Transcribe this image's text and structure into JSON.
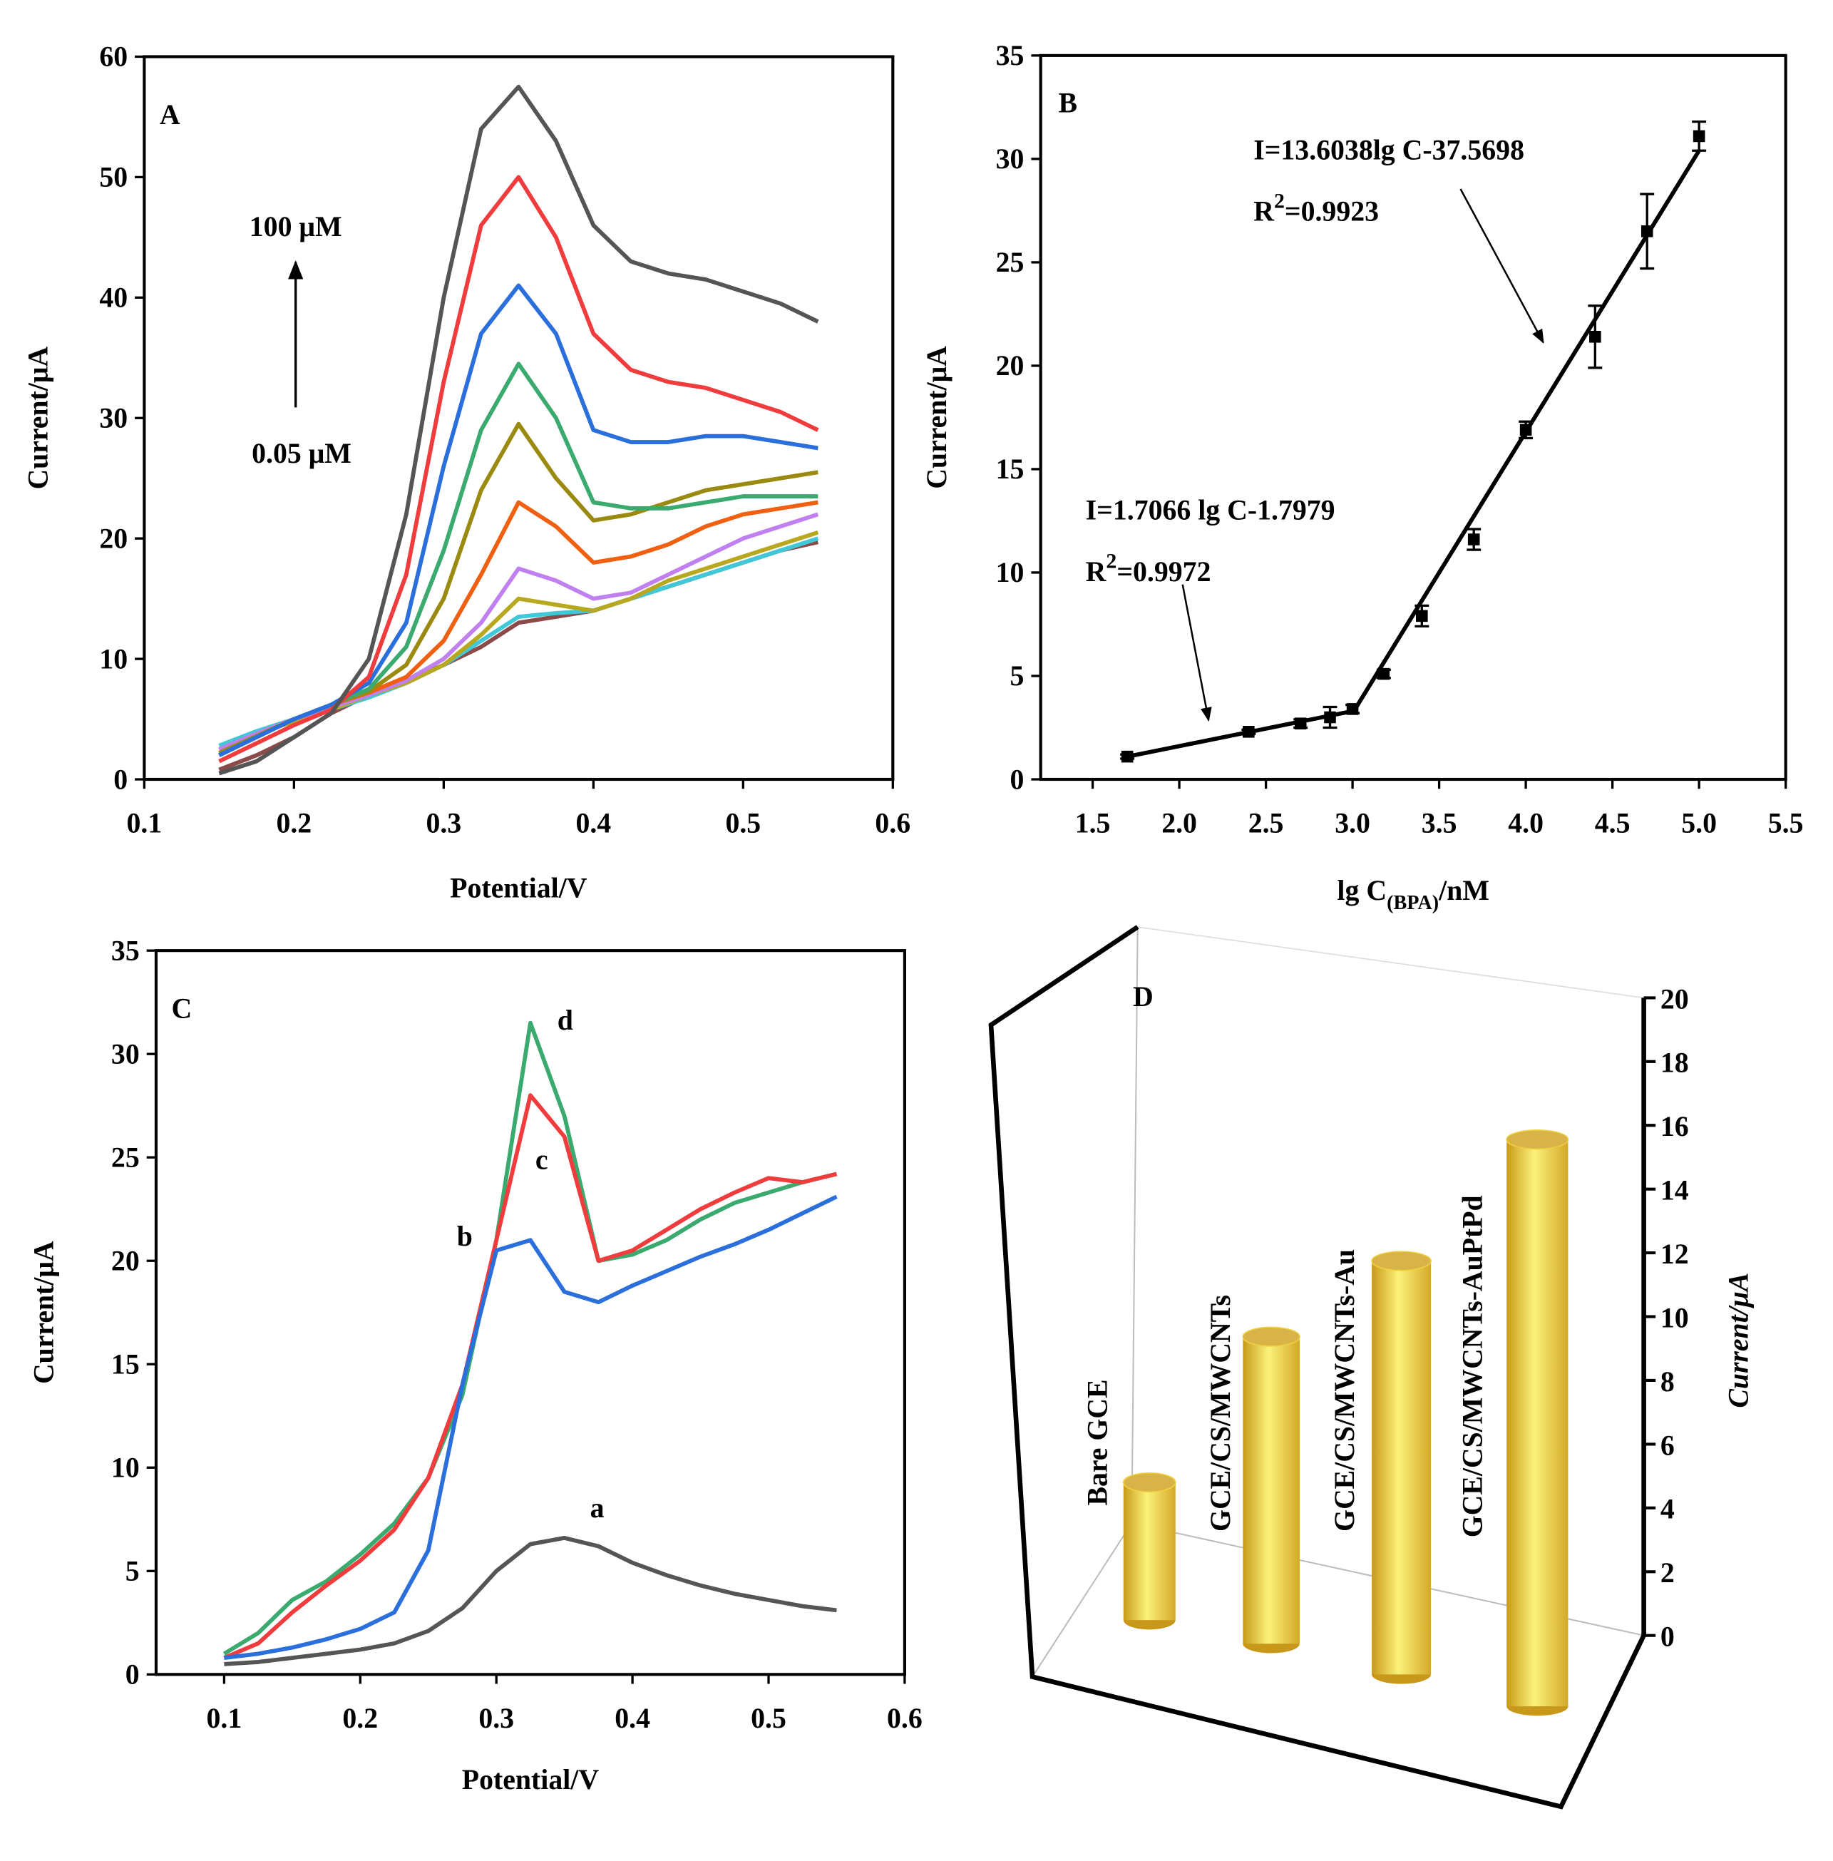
{
  "chart_data": [
    {
      "type": "line",
      "panel": "A",
      "x": [
        0.15,
        0.175,
        0.2,
        0.225,
        0.25,
        0.275,
        0.3,
        0.325,
        0.35,
        0.375,
        0.4,
        0.425,
        0.45,
        0.475,
        0.5,
        0.525,
        0.55
      ],
      "series": [
        {
          "color": "#555555",
          "values": [
            0.5,
            1.5,
            3.5,
            5.5,
            10,
            22,
            40,
            54,
            57.5,
            53,
            46,
            43,
            42,
            41.5,
            40.5,
            39.5,
            38
          ]
        },
        {
          "color": "#f03c3c",
          "values": [
            1.5,
            3,
            4.5,
            5.8,
            8.5,
            17,
            33,
            46,
            50,
            45,
            37,
            34,
            33,
            32.5,
            31.5,
            30.5,
            29
          ]
        },
        {
          "color": "#2a6fdb",
          "values": [
            2,
            3.5,
            5,
            6.2,
            8,
            13,
            26,
            37,
            41,
            37,
            29,
            28,
            28,
            28.5,
            28.5,
            28,
            27.5
          ]
        },
        {
          "color": "#3aaa6e",
          "values": [
            2,
            3.5,
            5,
            6.2,
            7.5,
            11,
            19,
            29,
            34.5,
            30,
            23,
            22.5,
            22.5,
            23,
            23.5,
            23.5,
            23.5
          ]
        },
        {
          "color": "#9a8a10",
          "values": [
            2.2,
            3.6,
            5,
            6.2,
            7.3,
            9.5,
            15,
            24,
            29.5,
            25,
            21.5,
            22,
            23,
            24,
            24.5,
            25,
            25.5
          ]
        },
        {
          "color": "#f06010",
          "values": [
            2,
            3.5,
            5,
            6.2,
            7.2,
            8.5,
            11.5,
            17,
            23,
            21,
            18,
            18.5,
            19.5,
            21,
            22,
            22.5,
            23
          ]
        },
        {
          "color": "#c080f0",
          "values": [
            2.5,
            3.8,
            5,
            6,
            7,
            8.2,
            10,
            13,
            17.5,
            16.5,
            15,
            15.5,
            17,
            18.5,
            20,
            21,
            22
          ]
        },
        {
          "color": "#b8a820",
          "values": [
            2.5,
            3.8,
            4.8,
            5.8,
            7,
            8,
            9.5,
            12,
            15,
            14.5,
            14,
            15,
            16.5,
            17.5,
            18.5,
            19.5,
            20.5
          ]
        },
        {
          "color": "#40c8d8",
          "values": [
            2.8,
            4,
            5,
            5.8,
            6.8,
            8,
            9.5,
            11.5,
            13.5,
            13.8,
            14,
            15,
            16,
            17,
            18,
            19,
            20
          ]
        },
        {
          "color": "#8a4a4a",
          "values": [
            0.8,
            2,
            3.5,
            5.5,
            7,
            8.2,
            9.5,
            11,
            13,
            13.5,
            14,
            15,
            16,
            17,
            18,
            19,
            19.7
          ]
        }
      ],
      "xlim": [
        0.1,
        0.6
      ],
      "xticks": [
        0.1,
        0.2,
        0.3,
        0.4,
        0.5,
        0.6
      ],
      "ylim": [
        0,
        60
      ],
      "yticks": [
        0,
        10,
        20,
        30,
        40,
        50,
        60
      ],
      "x_label": "Potential/V",
      "y_label": "Current/μA",
      "annotations": [
        "100 μM",
        "0.05 μM"
      ]
    },
    {
      "type": "scatter",
      "panel": "B",
      "x": [
        1.7,
        2.4,
        2.7,
        2.87,
        3.0,
        3.18,
        3.4,
        3.7,
        4.0,
        4.4,
        4.7,
        5.0
      ],
      "series": [
        {
          "color": "#000000",
          "values": [
            1.1,
            2.3,
            2.7,
            3.0,
            3.4,
            5.1,
            7.9,
            11.6,
            16.9,
            21.4,
            26.5,
            31.1
          ],
          "errors": [
            0.1,
            0.1,
            0.2,
            0.5,
            0.2,
            0.2,
            0.5,
            0.5,
            0.4,
            1.5,
            1.8,
            0.7
          ]
        }
      ],
      "fit_lines": [
        {
          "x": [
            1.7,
            3.0
          ],
          "y": [
            1.1,
            3.3
          ]
        },
        {
          "x": [
            3.0,
            5.0
          ],
          "y": [
            3.2,
            30.4
          ]
        }
      ],
      "equations": [
        {
          "text": "I=1.7066 lg C-1.7979",
          "r2": [
            "R",
            "2",
            "=0.9972"
          ]
        },
        {
          "text": "I=13.6038lg C-37.5698",
          "r2": [
            "R",
            "2",
            "=0.9923"
          ]
        }
      ],
      "xlim": [
        1.2,
        5.5
      ],
      "xticks": [
        1.5,
        {
          "value": 2,
          "label": "2.0"
        },
        2.5,
        {
          "value": 3,
          "label": "3.0"
        },
        3.5,
        {
          "value": 4,
          "label": "4.0"
        },
        4.5,
        {
          "value": 5,
          "label": "5.0"
        },
        5.5
      ],
      "ylim": [
        0,
        35
      ],
      "yticks": [
        0,
        5,
        10,
        15,
        20,
        25,
        30,
        35
      ],
      "x_label": [
        "lg C",
        "(BPA)",
        "/nM"
      ],
      "y_label": "Current/μA"
    },
    {
      "type": "line",
      "panel": "C",
      "x": [
        0.1,
        0.125,
        0.15,
        0.175,
        0.2,
        0.225,
        0.25,
        0.275,
        0.3,
        0.325,
        0.35,
        0.375,
        0.4,
        0.425,
        0.45,
        0.475,
        0.5,
        0.525,
        0.55
      ],
      "series": [
        {
          "name": "a",
          "color": "#555555",
          "values": [
            0.5,
            0.6,
            0.8,
            1,
            1.2,
            1.5,
            2.1,
            3.2,
            5,
            6.3,
            6.6,
            6.2,
            5.4,
            4.8,
            4.3,
            3.9,
            3.6,
            3.3,
            3.1
          ]
        },
        {
          "name": "b",
          "color": "#2a6fdb",
          "values": [
            0.8,
            1,
            1.3,
            1.7,
            2.2,
            3,
            6,
            14,
            20.5,
            21,
            18.5,
            18,
            18.8,
            19.5,
            20.2,
            20.8,
            21.5,
            22.3,
            23.1
          ]
        },
        {
          "name": "c",
          "color": "#f03c3c",
          "values": [
            0.8,
            1.5,
            3,
            4.3,
            5.5,
            7,
            9.5,
            14,
            21,
            28,
            26,
            20,
            20.5,
            21.5,
            22.5,
            23.3,
            24,
            23.8,
            24.2
          ]
        },
        {
          "name": "d",
          "color": "#3aaa6e",
          "values": [
            1,
            2,
            3.6,
            4.5,
            5.8,
            7.3,
            9.5,
            13.5,
            21,
            31.5,
            27,
            20,
            20.3,
            21,
            22,
            22.8,
            23.3,
            23.8,
            24.2
          ]
        }
      ],
      "xlim": [
        0.05,
        0.6
      ],
      "xticks": [
        0.1,
        0.2,
        0.3,
        0.4,
        0.5,
        0.6
      ],
      "ylim": [
        0,
        35
      ],
      "yticks": [
        0,
        5,
        10,
        15,
        20,
        25,
        30,
        35
      ],
      "x_label": "Potential/V",
      "y_label": "Current/μA"
    },
    {
      "type": "bar3d",
      "panel": "D",
      "categories": [
        "Bare GCE",
        "GCE/CS/MWCNTs",
        "GCE/CS/MWCNTs-Au",
        "GCE/CS/MWCNTs-AuPtPd"
      ],
      "values": [
        5.3,
        10.0,
        12.2,
        16.0
      ],
      "color": "#f0d040",
      "ylim": [
        0,
        20
      ],
      "yticks": [
        0,
        2,
        4,
        6,
        8,
        10,
        12,
        14,
        16,
        18,
        20
      ],
      "y_label": "Current/μA"
    }
  ]
}
